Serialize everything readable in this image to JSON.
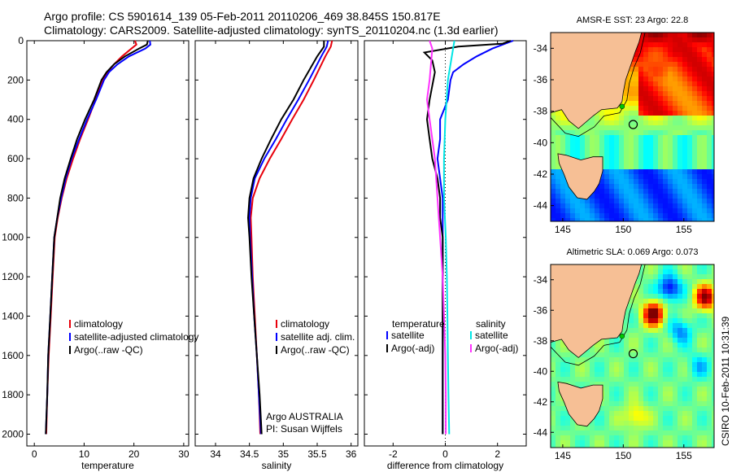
{
  "header": {
    "line1": "Argo profile: CS 5901614_139 05-Feb-2011 20110206_469 38.845S 150.817E",
    "line2": "Climatology: CARS2009. Satellite-adjusted climatology: synTS_20110204.nc (1.3d earlier)"
  },
  "side_label": "CSIRO 10-Feb-2011 10:31:39",
  "colors": {
    "climatology": "#e8000b",
    "satellite": "#0000ff",
    "argo": "#000000",
    "sat_sal": "#00e5e5",
    "argo_adj": "#ff33ff",
    "land": "#f6bf95"
  },
  "chart_data": [
    {
      "type": "line",
      "title": "",
      "xlabel": "temperature",
      "ylabel": "",
      "xlim": [
        -1.5,
        31
      ],
      "ylim": [
        2060,
        0
      ],
      "xticks": [
        0,
        10,
        20,
        30
      ],
      "yticks": [
        0,
        200,
        400,
        600,
        800,
        1000,
        1200,
        1400,
        1600,
        1800,
        2000
      ],
      "series": [
        {
          "name": "climatology",
          "color": "#e8000b",
          "points": [
            [
              20.2,
              0
            ],
            [
              20.5,
              20
            ],
            [
              19.5,
              40
            ],
            [
              17.6,
              80
            ],
            [
              16.0,
              120
            ],
            [
              14.7,
              160
            ],
            [
              13.8,
              200
            ],
            [
              12.3,
              300
            ],
            [
              10.8,
              400
            ],
            [
              9.2,
              500
            ],
            [
              7.8,
              600
            ],
            [
              6.5,
              700
            ],
            [
              5.5,
              800
            ],
            [
              4.7,
              900
            ],
            [
              4.1,
              1000
            ],
            [
              3.7,
              1200
            ],
            [
              3.3,
              1400
            ],
            [
              2.9,
              1600
            ],
            [
              2.6,
              1800
            ],
            [
              2.4,
              2000
            ]
          ]
        },
        {
          "name": "satellite-adjusted climatology",
          "color": "#0000ff",
          "points": [
            [
              23.2,
              0
            ],
            [
              23.3,
              20
            ],
            [
              22.3,
              40
            ],
            [
              19.0,
              80
            ],
            [
              16.7,
              120
            ],
            [
              15.0,
              160
            ],
            [
              14.0,
              200
            ],
            [
              12.4,
              300
            ],
            [
              10.6,
              400
            ],
            [
              9.0,
              500
            ],
            [
              7.5,
              600
            ],
            [
              6.3,
              700
            ],
            [
              5.4,
              800
            ],
            [
              4.6,
              900
            ],
            [
              4.0,
              1000
            ],
            [
              3.6,
              1200
            ],
            [
              3.2,
              1400
            ],
            [
              2.8,
              1600
            ],
            [
              2.6,
              1800
            ],
            [
              2.3,
              2000
            ]
          ]
        },
        {
          "name": "Argo(..raw -QC)",
          "color": "#000000",
          "points": [
            [
              22.8,
              0
            ],
            [
              22.6,
              20
            ],
            [
              21.0,
              40
            ],
            [
              18.2,
              80
            ],
            [
              16.0,
              120
            ],
            [
              14.5,
              160
            ],
            [
              13.5,
              200
            ],
            [
              12.0,
              300
            ],
            [
              10.2,
              400
            ],
            [
              8.6,
              500
            ],
            [
              7.3,
              600
            ],
            [
              6.1,
              700
            ],
            [
              5.2,
              800
            ],
            [
              4.6,
              900
            ],
            [
              4.0,
              1000
            ],
            [
              3.6,
              1200
            ],
            [
              3.2,
              1400
            ],
            [
              2.8,
              1600
            ],
            [
              2.6,
              1800
            ],
            [
              2.3,
              2000
            ]
          ]
        }
      ],
      "legend": {
        "position": "lower-right",
        "entries": [
          "climatology",
          "satellite-adjusted climatology",
          "Argo(..raw -QC)"
        ]
      }
    },
    {
      "type": "line",
      "title": "",
      "xlabel": "salinity",
      "ylabel": "",
      "xlim": [
        33.7,
        36.1
      ],
      "ylim": [
        2060,
        0
      ],
      "xticks": [
        34,
        34.5,
        35,
        35.5,
        36
      ],
      "series": [
        {
          "name": "climatology",
          "color": "#e8000b",
          "points": [
            [
              35.72,
              0
            ],
            [
              35.7,
              30
            ],
            [
              35.62,
              80
            ],
            [
              35.45,
              200
            ],
            [
              35.3,
              300
            ],
            [
              35.13,
              400
            ],
            [
              34.97,
              500
            ],
            [
              34.8,
              600
            ],
            [
              34.65,
              700
            ],
            [
              34.55,
              800
            ],
            [
              34.52,
              900
            ],
            [
              34.53,
              1000
            ],
            [
              34.55,
              1200
            ],
            [
              34.58,
              1400
            ],
            [
              34.61,
              1600
            ],
            [
              34.64,
              1800
            ],
            [
              34.66,
              2000
            ]
          ]
        },
        {
          "name": "satellite adj. clim.",
          "color": "#0000ff",
          "points": [
            [
              35.66,
              0
            ],
            [
              35.64,
              30
            ],
            [
              35.56,
              80
            ],
            [
              35.38,
              200
            ],
            [
              35.22,
              300
            ],
            [
              35.05,
              400
            ],
            [
              34.89,
              500
            ],
            [
              34.72,
              600
            ],
            [
              34.58,
              700
            ],
            [
              34.52,
              800
            ],
            [
              34.5,
              900
            ],
            [
              34.51,
              1000
            ],
            [
              34.54,
              1200
            ],
            [
              34.57,
              1400
            ],
            [
              34.61,
              1600
            ],
            [
              34.64,
              1800
            ],
            [
              34.67,
              2000
            ]
          ]
        },
        {
          "name": "Argo(..raw -QC)",
          "color": "#000000",
          "points": [
            [
              35.6,
              0
            ],
            [
              35.6,
              30
            ],
            [
              35.5,
              80
            ],
            [
              35.3,
              200
            ],
            [
              35.15,
              300
            ],
            [
              34.97,
              400
            ],
            [
              34.82,
              500
            ],
            [
              34.68,
              600
            ],
            [
              34.56,
              700
            ],
            [
              34.5,
              800
            ],
            [
              34.48,
              900
            ],
            [
              34.5,
              1000
            ],
            [
              34.53,
              1200
            ],
            [
              34.57,
              1400
            ],
            [
              34.61,
              1600
            ],
            [
              34.65,
              1800
            ],
            [
              34.68,
              2000
            ]
          ]
        }
      ],
      "legend": {
        "position": "lower-right",
        "entries": [
          "climatology",
          "satellite adj. clim.",
          "Argo(..raw -QC)"
        ]
      },
      "annotation": [
        "Argo AUSTRALIA",
        "PI: Susan Wijffels"
      ]
    },
    {
      "type": "line",
      "title": "",
      "xlabel": "difference from climatology",
      "ylabel": "",
      "xlim": [
        -3.1,
        3.1
      ],
      "ylim": [
        2060,
        0
      ],
      "xticks": [
        -2,
        0,
        2
      ],
      "zero_line": true,
      "legend_headings": [
        "temperature",
        "salinity"
      ],
      "series": [
        {
          "name": "temperature satellite",
          "color": "#0000ff",
          "group": "temperature",
          "points": [
            [
              2.6,
              0
            ],
            [
              2.2,
              20
            ],
            [
              1.8,
              40
            ],
            [
              1.2,
              80
            ],
            [
              0.7,
              120
            ],
            [
              0.3,
              160
            ],
            [
              0.2,
              200
            ],
            [
              0.1,
              300
            ],
            [
              -0.2,
              400
            ],
            [
              -0.2,
              500
            ],
            [
              -0.3,
              600
            ],
            [
              -0.2,
              700
            ],
            [
              -0.1,
              800
            ],
            [
              -0.1,
              900
            ],
            [
              -0.1,
              1000
            ],
            [
              -0.1,
              1200
            ],
            [
              -0.1,
              1400
            ],
            [
              -0.1,
              1600
            ],
            [
              -0.1,
              1800
            ],
            [
              -0.1,
              2000
            ]
          ]
        },
        {
          "name": "temperature Argo(-adj)",
          "color": "#000000",
          "group": "temperature",
          "points": [
            [
              2.5,
              0
            ],
            [
              2.2,
              15
            ],
            [
              0.5,
              30
            ],
            [
              -0.8,
              60
            ],
            [
              -0.5,
              100
            ],
            [
              -0.4,
              160
            ],
            [
              -0.6,
              300
            ],
            [
              -0.7,
              400
            ],
            [
              -0.6,
              500
            ],
            [
              -0.5,
              600
            ],
            [
              -0.3,
              700
            ],
            [
              -0.2,
              800
            ],
            [
              -0.2,
              900
            ],
            [
              -0.1,
              1000
            ],
            [
              -0.1,
              1200
            ],
            [
              -0.1,
              1400
            ],
            [
              -0.1,
              1600
            ],
            [
              -0.1,
              1800
            ],
            [
              -0.1,
              2000
            ]
          ]
        },
        {
          "name": "salinity satellite",
          "color": "#00e5e5",
          "group": "salinity",
          "points": [
            [
              0.35,
              0
            ],
            [
              0.3,
              40
            ],
            [
              0.1,
              200
            ],
            [
              0.0,
              400
            ],
            [
              -0.05,
              600
            ],
            [
              -0.05,
              800
            ],
            [
              0.02,
              1000
            ],
            [
              0.06,
              1200
            ],
            [
              0.08,
              1400
            ],
            [
              0.1,
              1600
            ],
            [
              0.12,
              1800
            ],
            [
              0.15,
              2000
            ]
          ]
        },
        {
          "name": "salinity Argo(-adj)",
          "color": "#ff33ff",
          "group": "salinity",
          "points": [
            [
              -0.6,
              0
            ],
            [
              -0.5,
              40
            ],
            [
              -0.6,
              200
            ],
            [
              -0.7,
              300
            ],
            [
              -0.6,
              400
            ],
            [
              -0.5,
              500
            ],
            [
              -0.4,
              600
            ],
            [
              -0.3,
              800
            ],
            [
              -0.2,
              1000
            ],
            [
              -0.1,
              1200
            ],
            [
              -0.05,
              1400
            ],
            [
              0.0,
              1600
            ],
            [
              0.02,
              1800
            ],
            [
              0.02,
              2000
            ]
          ]
        }
      ],
      "legend_entries": [
        "satellite",
        "Argo(-adj)",
        "satellite",
        "Argo(-adj)"
      ]
    },
    {
      "type": "heatmap",
      "title": "AMSR-E SST: 23 Argo: 22.8",
      "xlim": [
        144,
        157.5
      ],
      "ylim": [
        -45,
        -33
      ],
      "xticks": [
        145,
        150,
        155
      ],
      "yticks": [
        -34,
        -36,
        -38,
        -40,
        -42,
        -44
      ],
      "float_position": [
        150.817,
        -38.845
      ],
      "marker": [
        149.9,
        -37.7
      ]
    },
    {
      "type": "heatmap",
      "title": "Altimetric SLA: 0.069 Argo: 0.073",
      "xlim": [
        144,
        157.5
      ],
      "ylim": [
        -45,
        -33
      ],
      "xticks": [
        145,
        150,
        155
      ],
      "yticks": [
        -34,
        -36,
        -38,
        -40,
        -42,
        -44
      ],
      "float_position": [
        150.817,
        -38.845
      ],
      "marker": [
        149.9,
        -37.7
      ]
    }
  ]
}
